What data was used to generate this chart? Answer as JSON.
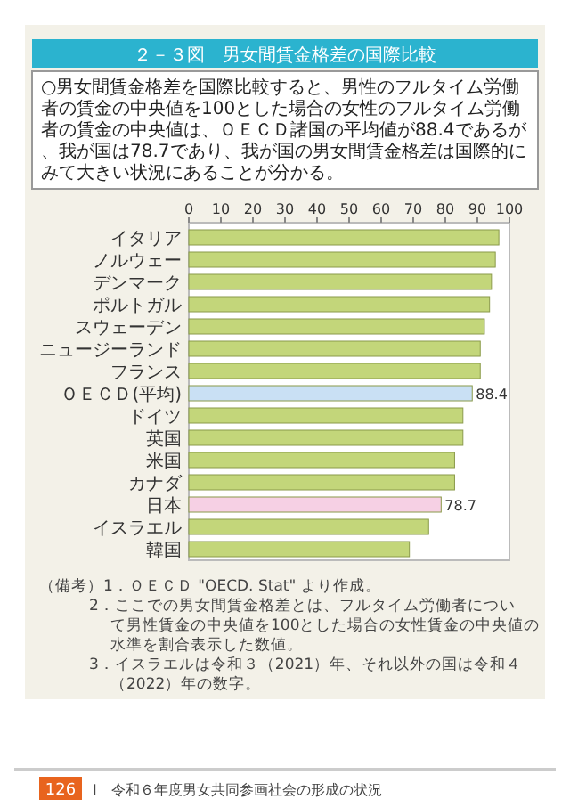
{
  "chart_data": {
    "type": "bar",
    "orientation": "horizontal",
    "title": "２－３図　男女間賃金格差の国際比較",
    "subtitle": "○男女間賃金格差を国際比較すると、男性のフルタイム労働者の賃金の中央値を100とした場合の女性のフルタイム労働者の賃金の中央値は、ＯＥＣＤ諸国の平均値が88.4であるが、我が国は78.7であり、我が国の男女間賃金格差は国際的にみて大きい状況にあることが分かる。",
    "categories": [
      "イタリア",
      "ノルウェー",
      "デンマーク",
      "ポルトガル",
      "スウェーデン",
      "ニュージーランド",
      "フランス",
      "ＯＥＣＤ(平均)",
      "ドイツ",
      "英国",
      "米国",
      "カナダ",
      "日本",
      "イスラエル",
      "韓国"
    ],
    "values": [
      96.7,
      95.6,
      94.4,
      93.8,
      92.2,
      90.9,
      90.9,
      88.4,
      85.5,
      85.5,
      82.9,
      82.9,
      78.7,
      74.8,
      68.8
    ],
    "colors": [
      "#c3d67a",
      "#c3d67a",
      "#c3d67a",
      "#c3d67a",
      "#c3d67a",
      "#c3d67a",
      "#c3d67a",
      "#c9e0f4",
      "#c3d67a",
      "#c3d67a",
      "#c3d67a",
      "#c3d67a",
      "#f6d0e4",
      "#c3d67a",
      "#c3d67a"
    ],
    "value_labels": [
      null,
      null,
      null,
      null,
      null,
      null,
      null,
      "88.4",
      null,
      null,
      null,
      null,
      "78.7",
      null,
      null
    ],
    "xlim": [
      0,
      100
    ],
    "xticks": [
      0,
      10,
      20,
      30,
      40,
      50,
      60,
      70,
      80,
      90,
      100
    ],
    "annotations": [
      "（備考）1．ＯＥＣＤ \"OECD. Stat\" より作成。",
      "2．ここでの男女間賃金格差とは、フルタイム労働者について男性賃金の中央値を100とした場合の女性賃金の中央値の水準を割合表示した数値。",
      "3．イスラエルは令和３（2021）年、それ以外の国は令和４（2022）年の数字。",
      "126",
      "I　令和６年度男女共同参画社会の形成の状況"
    ]
  }
}
